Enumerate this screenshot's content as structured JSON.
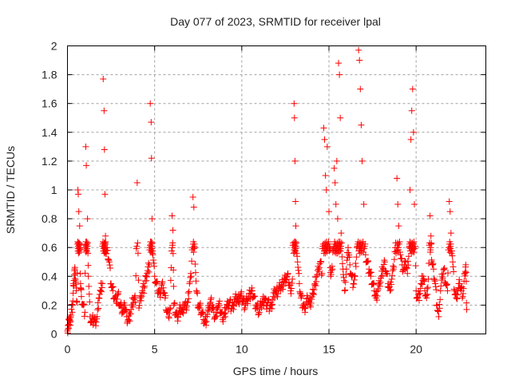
{
  "chart_data": {
    "type": "scatter",
    "title": "Day 077 of 2023, SRMTID for receiver lpal",
    "xlabel": "GPS time / hours",
    "ylabel": "SRMTID / TECUs",
    "xlim": [
      0,
      24
    ],
    "ylim": [
      0,
      2
    ],
    "xticks": [
      "0",
      "5",
      "10",
      "15",
      "20"
    ],
    "xtick_values": [
      0,
      5,
      10,
      15,
      20
    ],
    "yticks": [
      "0",
      "0.2",
      "0.4",
      "0.6",
      "0.8",
      "1",
      "1.2",
      "1.4",
      "1.6",
      "1.8",
      "2"
    ],
    "ytick_values": [
      0,
      0.2,
      0.4,
      0.6,
      0.8,
      1.0,
      1.2,
      1.4,
      1.6,
      1.8,
      2.0
    ],
    "grid": true,
    "marker": "+",
    "color": "#ff0000",
    "series": [
      {
        "name": "SRMTID",
        "points": [
          [
            0.0,
            0.02
          ],
          [
            0.05,
            0.06
          ],
          [
            0.1,
            0.1
          ],
          [
            0.15,
            0.08
          ],
          [
            0.2,
            0.13
          ],
          [
            0.3,
            0.2
          ],
          [
            0.35,
            0.35
          ],
          [
            0.4,
            0.44
          ],
          [
            0.45,
            0.42
          ],
          [
            0.5,
            0.3
          ],
          [
            0.55,
            0.22
          ],
          [
            0.6,
            1.0
          ],
          [
            0.62,
            0.97
          ],
          [
            0.65,
            0.85
          ],
          [
            0.68,
            0.62
          ],
          [
            0.7,
            0.75
          ],
          [
            0.75,
            0.35
          ],
          [
            0.8,
            0.26
          ],
          [
            0.9,
            0.2
          ],
          [
            1.0,
            0.15
          ],
          [
            1.05,
            1.3
          ],
          [
            1.08,
            1.17
          ],
          [
            1.1,
            0.62
          ],
          [
            1.15,
            0.8
          ],
          [
            1.2,
            0.4
          ],
          [
            1.3,
            0.12
          ],
          [
            1.4,
            0.08
          ],
          [
            1.5,
            0.1
          ],
          [
            1.6,
            0.09
          ],
          [
            1.7,
            0.12
          ],
          [
            1.8,
            0.25
          ],
          [
            1.9,
            0.3
          ],
          [
            2.0,
            0.35
          ],
          [
            2.05,
            1.77
          ],
          [
            2.1,
            1.55
          ],
          [
            2.12,
            1.28
          ],
          [
            2.15,
            0.97
          ],
          [
            2.18,
            0.68
          ],
          [
            2.2,
            0.56
          ],
          [
            2.3,
            0.58
          ],
          [
            2.4,
            0.5
          ],
          [
            2.5,
            0.35
          ],
          [
            2.6,
            0.3
          ],
          [
            2.7,
            0.25
          ],
          [
            2.8,
            0.22
          ],
          [
            2.9,
            0.28
          ],
          [
            3.0,
            0.2
          ],
          [
            3.1,
            0.18
          ],
          [
            3.2,
            0.15
          ],
          [
            3.3,
            0.2
          ],
          [
            3.4,
            0.12
          ],
          [
            3.5,
            0.1
          ],
          [
            3.6,
            0.14
          ],
          [
            3.7,
            0.2
          ],
          [
            3.8,
            0.24
          ],
          [
            3.9,
            0.22
          ],
          [
            4.0,
            1.05
          ],
          [
            4.1,
            0.18
          ],
          [
            4.2,
            0.25
          ],
          [
            4.3,
            0.3
          ],
          [
            4.4,
            0.32
          ],
          [
            4.5,
            0.4
          ],
          [
            4.6,
            0.44
          ],
          [
            4.7,
            0.48
          ],
          [
            4.75,
            1.6
          ],
          [
            4.8,
            1.47
          ],
          [
            4.82,
            1.22
          ],
          [
            4.85,
            0.8
          ],
          [
            4.9,
            0.55
          ],
          [
            5.0,
            0.4
          ],
          [
            5.1,
            0.35
          ],
          [
            5.2,
            0.3
          ],
          [
            5.3,
            0.28
          ],
          [
            5.4,
            0.34
          ],
          [
            5.5,
            0.32
          ],
          [
            5.6,
            0.25
          ],
          [
            5.7,
            0.15
          ],
          [
            5.8,
            0.12
          ],
          [
            5.9,
            0.18
          ],
          [
            6.0,
            0.82
          ],
          [
            6.05,
            0.72
          ],
          [
            6.1,
            0.2
          ],
          [
            6.2,
            0.15
          ],
          [
            6.3,
            0.12
          ],
          [
            6.4,
            0.16
          ],
          [
            6.5,
            0.18
          ],
          [
            6.6,
            0.15
          ],
          [
            6.7,
            0.2
          ],
          [
            6.8,
            0.18
          ],
          [
            6.9,
            0.22
          ],
          [
            7.0,
            0.35
          ],
          [
            7.1,
            0.4
          ],
          [
            7.2,
            0.95
          ],
          [
            7.25,
            0.88
          ],
          [
            7.3,
            0.6
          ],
          [
            7.4,
            0.3
          ],
          [
            7.5,
            0.2
          ],
          [
            7.6,
            0.18
          ],
          [
            7.7,
            0.15
          ],
          [
            7.8,
            0.1
          ],
          [
            7.9,
            0.08
          ],
          [
            8.0,
            0.12
          ],
          [
            8.1,
            0.18
          ],
          [
            8.2,
            0.22
          ],
          [
            8.3,
            0.2
          ],
          [
            8.4,
            0.15
          ],
          [
            8.5,
            0.12
          ],
          [
            8.6,
            0.18
          ],
          [
            8.7,
            0.2
          ],
          [
            8.8,
            0.15
          ],
          [
            8.9,
            0.1
          ],
          [
            9.0,
            0.14
          ],
          [
            9.1,
            0.18
          ],
          [
            9.2,
            0.2
          ],
          [
            9.3,
            0.22
          ],
          [
            9.4,
            0.18
          ],
          [
            9.5,
            0.2
          ],
          [
            9.6,
            0.24
          ],
          [
            9.7,
            0.25
          ],
          [
            9.8,
            0.22
          ],
          [
            9.9,
            0.26
          ],
          [
            10.0,
            0.25
          ],
          [
            10.1,
            0.22
          ],
          [
            10.2,
            0.2
          ],
          [
            10.3,
            0.24
          ],
          [
            10.4,
            0.25
          ],
          [
            10.5,
            0.28
          ],
          [
            10.6,
            0.3
          ],
          [
            10.7,
            0.26
          ],
          [
            10.8,
            0.2
          ],
          [
            10.9,
            0.18
          ],
          [
            11.0,
            0.15
          ],
          [
            11.1,
            0.2
          ],
          [
            11.2,
            0.22
          ],
          [
            11.3,
            0.25
          ],
          [
            11.4,
            0.2
          ],
          [
            11.5,
            0.22
          ],
          [
            11.6,
            0.18
          ],
          [
            11.7,
            0.2
          ],
          [
            11.8,
            0.26
          ],
          [
            11.9,
            0.3
          ],
          [
            12.0,
            0.28
          ],
          [
            12.1,
            0.3
          ],
          [
            12.2,
            0.32
          ],
          [
            12.3,
            0.34
          ],
          [
            12.4,
            0.36
          ],
          [
            12.5,
            0.38
          ],
          [
            12.6,
            0.4
          ],
          [
            12.7,
            0.36
          ],
          [
            12.8,
            0.3
          ],
          [
            12.9,
            0.38
          ],
          [
            13.0,
            1.6
          ],
          [
            13.02,
            1.5
          ],
          [
            13.05,
            1.2
          ],
          [
            13.08,
            0.92
          ],
          [
            13.1,
            0.75
          ],
          [
            13.2,
            0.5
          ],
          [
            13.3,
            0.35
          ],
          [
            13.4,
            0.25
          ],
          [
            13.5,
            0.2
          ],
          [
            13.6,
            0.18
          ],
          [
            13.7,
            0.22
          ],
          [
            13.8,
            0.25
          ],
          [
            13.9,
            0.2
          ],
          [
            14.0,
            0.24
          ],
          [
            14.1,
            0.28
          ],
          [
            14.2,
            0.35
          ],
          [
            14.3,
            0.4
          ],
          [
            14.4,
            0.45
          ],
          [
            14.5,
            0.5
          ],
          [
            14.6,
            0.42
          ],
          [
            14.7,
            1.43
          ],
          [
            14.75,
            1.35
          ],
          [
            14.8,
            1.1
          ],
          [
            14.85,
            1.0
          ],
          [
            14.9,
            1.3
          ],
          [
            15.0,
            0.85
          ],
          [
            15.05,
            0.6
          ],
          [
            15.1,
            0.4
          ],
          [
            15.2,
            0.45
          ],
          [
            15.3,
            1.15
          ],
          [
            15.35,
            1.05
          ],
          [
            15.4,
            0.9
          ],
          [
            15.45,
            1.2
          ],
          [
            15.5,
            0.8
          ],
          [
            15.55,
            1.88
          ],
          [
            15.6,
            1.8
          ],
          [
            15.65,
            1.5
          ],
          [
            15.7,
            0.7
          ],
          [
            15.8,
            0.45
          ],
          [
            15.9,
            0.3
          ],
          [
            16.0,
            0.45
          ],
          [
            16.1,
            0.6
          ],
          [
            16.2,
            0.48
          ],
          [
            16.3,
            0.4
          ],
          [
            16.4,
            0.35
          ],
          [
            16.5,
            0.4
          ],
          [
            16.6,
            0.6
          ],
          [
            16.7,
            1.97
          ],
          [
            16.75,
            1.9
          ],
          [
            16.8,
            1.7
          ],
          [
            16.85,
            1.45
          ],
          [
            16.9,
            1.2
          ],
          [
            17.0,
            0.9
          ],
          [
            17.1,
            0.55
          ],
          [
            17.2,
            0.5
          ],
          [
            17.3,
            0.45
          ],
          [
            17.4,
            0.4
          ],
          [
            17.5,
            0.35
          ],
          [
            17.6,
            0.3
          ],
          [
            17.7,
            0.25
          ],
          [
            17.8,
            0.3
          ],
          [
            17.9,
            0.35
          ],
          [
            18.0,
            0.4
          ],
          [
            18.1,
            0.45
          ],
          [
            18.2,
            0.5
          ],
          [
            18.3,
            0.42
          ],
          [
            18.4,
            0.35
          ],
          [
            18.5,
            0.3
          ],
          [
            18.6,
            0.38
          ],
          [
            18.7,
            0.45
          ],
          [
            18.8,
            0.6
          ],
          [
            18.9,
            1.08
          ],
          [
            18.95,
            0.9
          ],
          [
            19.0,
            0.75
          ],
          [
            19.1,
            0.55
          ],
          [
            19.2,
            0.48
          ],
          [
            19.3,
            0.45
          ],
          [
            19.4,
            0.5
          ],
          [
            19.5,
            0.42
          ],
          [
            19.6,
            0.6
          ],
          [
            19.65,
            1.0
          ],
          [
            19.7,
            1.35
          ],
          [
            19.75,
            1.55
          ],
          [
            19.8,
            1.7
          ],
          [
            19.85,
            1.4
          ],
          [
            19.9,
            0.9
          ],
          [
            20.0,
            0.3
          ],
          [
            20.1,
            0.25
          ],
          [
            20.2,
            0.28
          ],
          [
            20.3,
            0.35
          ],
          [
            20.4,
            0.4
          ],
          [
            20.5,
            0.3
          ],
          [
            20.6,
            0.25
          ],
          [
            20.7,
            0.38
          ],
          [
            20.8,
            0.82
          ],
          [
            20.85,
            0.68
          ],
          [
            20.9,
            0.5
          ],
          [
            21.0,
            0.45
          ],
          [
            21.1,
            0.35
          ],
          [
            21.2,
            0.2
          ],
          [
            21.3,
            0.12
          ],
          [
            21.4,
            0.3
          ],
          [
            21.5,
            0.4
          ],
          [
            21.6,
            0.45
          ],
          [
            21.7,
            0.35
          ],
          [
            21.8,
            0.3
          ],
          [
            21.9,
            0.92
          ],
          [
            21.95,
            0.85
          ],
          [
            22.0,
            0.7
          ],
          [
            22.1,
            0.5
          ],
          [
            22.2,
            0.3
          ],
          [
            22.3,
            0.25
          ],
          [
            22.4,
            0.3
          ],
          [
            22.5,
            0.35
          ],
          [
            22.6,
            0.3
          ],
          [
            22.7,
            0.28
          ],
          [
            22.8,
            0.42
          ],
          [
            22.85,
            0.48
          ],
          [
            22.9,
            0.17
          ]
        ]
      }
    ]
  }
}
